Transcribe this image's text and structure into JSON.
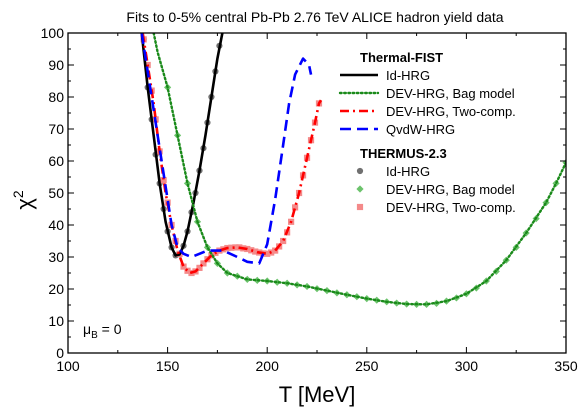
{
  "chart_data": {
    "type": "line",
    "title": "Fits to 0-5% central Pb-Pb 2.76 TeV ALICE hadron yield data",
    "xlabel": "T [MeV]",
    "ylabel": "χ",
    "ylabel_sup": "2",
    "xlim": [
      100,
      350
    ],
    "ylim": [
      0,
      100
    ],
    "xticks": [
      "100",
      "150",
      "200",
      "250",
      "300",
      "350"
    ],
    "yticks": [
      "0",
      "10",
      "20",
      "30",
      "40",
      "50",
      "60",
      "70",
      "80",
      "90",
      "100"
    ],
    "annotation": {
      "main": "μ",
      "sub": "B",
      "rest": " = 0"
    },
    "legend_position": "top-right",
    "legend_groups": [
      {
        "header": "Thermal-FIST",
        "series": [
          "fist_id",
          "fist_bag",
          "fist_two",
          "fist_qvdw"
        ]
      },
      {
        "header": "THERMUS-2.3",
        "series": [
          "thermus_id",
          "thermus_bag",
          "thermus_two"
        ]
      }
    ],
    "series": [
      {
        "id": "fist_id",
        "name": "Id-HRG",
        "style": "line",
        "dash": "solid",
        "color": "#000000",
        "points": [
          [
            137,
            100
          ],
          [
            140,
            83
          ],
          [
            143,
            68
          ],
          [
            146,
            53
          ],
          [
            149,
            41
          ],
          [
            152,
            33
          ],
          [
            154,
            30.5
          ],
          [
            156,
            30.8
          ],
          [
            158,
            33.5
          ],
          [
            160,
            38
          ],
          [
            163,
            47
          ],
          [
            166,
            57
          ],
          [
            169,
            68
          ],
          [
            172,
            80
          ],
          [
            175,
            92
          ],
          [
            177.5,
            100
          ]
        ]
      },
      {
        "id": "fist_bag",
        "name": "DEV-HRG, Bag model",
        "style": "line",
        "dash": "dotted",
        "color": "#1a8a1a",
        "points": [
          [
            143,
            100
          ],
          [
            145,
            94
          ],
          [
            150,
            83
          ],
          [
            155,
            68
          ],
          [
            160,
            53
          ],
          [
            165,
            41
          ],
          [
            170,
            33
          ],
          [
            175,
            28
          ],
          [
            180,
            25
          ],
          [
            190,
            23
          ],
          [
            200,
            22.5
          ],
          [
            210,
            21.8
          ],
          [
            220,
            20.8
          ],
          [
            230,
            19.5
          ],
          [
            240,
            18.2
          ],
          [
            250,
            17
          ],
          [
            260,
            16
          ],
          [
            270,
            15.3
          ],
          [
            280,
            15.2
          ],
          [
            290,
            16.2
          ],
          [
            300,
            18.5
          ],
          [
            310,
            22.5
          ],
          [
            320,
            29
          ],
          [
            330,
            37.5
          ],
          [
            340,
            47
          ],
          [
            345,
            53
          ],
          [
            350,
            59.5
          ]
        ]
      },
      {
        "id": "fist_two",
        "name": "DEV-HRG, Two-comp.",
        "style": "line",
        "dash": "dashdot",
        "color": "#ff0000",
        "points": [
          [
            137.5,
            100
          ],
          [
            140,
            90
          ],
          [
            143,
            78
          ],
          [
            146,
            63
          ],
          [
            149,
            50
          ],
          [
            152,
            40
          ],
          [
            155,
            32
          ],
          [
            158,
            27
          ],
          [
            161,
            25
          ],
          [
            164,
            25.5
          ],
          [
            168,
            28
          ],
          [
            172,
            30.5
          ],
          [
            176,
            32
          ],
          [
            180,
            32.8
          ],
          [
            185,
            33
          ],
          [
            190,
            32.5
          ],
          [
            195,
            31.5
          ],
          [
            200,
            31
          ],
          [
            204,
            32
          ],
          [
            208,
            35
          ],
          [
            212,
            41
          ],
          [
            216,
            50
          ],
          [
            220,
            61
          ],
          [
            224,
            72
          ],
          [
            226,
            78
          ],
          [
            227,
            79
          ]
        ]
      },
      {
        "id": "fist_qvdw",
        "name": "QvdW-HRG",
        "style": "line",
        "dash": "dashed",
        "color": "#0000ff",
        "points": [
          [
            137,
            100
          ],
          [
            142,
            80
          ],
          [
            147,
            60
          ],
          [
            150,
            48
          ],
          [
            152,
            40
          ],
          [
            155,
            33
          ],
          [
            158,
            31
          ],
          [
            162,
            30
          ],
          [
            170,
            32
          ],
          [
            178,
            32
          ],
          [
            185,
            30
          ],
          [
            190,
            28.5
          ],
          [
            196,
            28
          ],
          [
            200,
            34
          ],
          [
            204,
            48
          ],
          [
            208,
            65
          ],
          [
            211,
            78
          ],
          [
            214,
            87
          ],
          [
            218,
            92
          ],
          [
            221,
            90
          ],
          [
            222,
            87
          ]
        ]
      },
      {
        "id": "thermus_id",
        "name": "Id-HRG",
        "style": "marker",
        "marker": "circle",
        "color": "#707070",
        "points": [
          [
            138,
            98
          ],
          [
            140,
            83
          ],
          [
            142,
            73
          ],
          [
            144,
            62
          ],
          [
            146,
            53
          ],
          [
            148,
            45
          ],
          [
            150,
            38
          ],
          [
            152,
            33
          ],
          [
            154,
            30.5
          ],
          [
            156,
            30.8
          ],
          [
            158,
            33.5
          ],
          [
            160,
            38
          ],
          [
            162,
            44
          ],
          [
            164,
            50
          ],
          [
            166,
            57
          ],
          [
            168,
            64
          ],
          [
            170,
            72
          ],
          [
            172,
            80
          ],
          [
            174,
            88
          ],
          [
            176,
            96
          ]
        ]
      },
      {
        "id": "thermus_bag",
        "name": "DEV-HRG, Bag model",
        "style": "marker",
        "marker": "diamond",
        "color": "#6cc36c",
        "points": [
          [
            150,
            83
          ],
          [
            155,
            68
          ],
          [
            160,
            53
          ],
          [
            165,
            41
          ],
          [
            170,
            33
          ],
          [
            175,
            28
          ],
          [
            180,
            25
          ],
          [
            185,
            24
          ],
          [
            190,
            23
          ],
          [
            195,
            22.7
          ],
          [
            200,
            22.5
          ],
          [
            205,
            22.1
          ],
          [
            210,
            21.8
          ],
          [
            215,
            21.3
          ],
          [
            220,
            20.8
          ],
          [
            225,
            20.1
          ],
          [
            230,
            19.5
          ],
          [
            235,
            18.8
          ],
          [
            240,
            18.2
          ],
          [
            245,
            17.6
          ],
          [
            250,
            17
          ],
          [
            255,
            16.5
          ],
          [
            260,
            16
          ],
          [
            265,
            15.6
          ],
          [
            270,
            15.3
          ],
          [
            275,
            15.2
          ],
          [
            280,
            15.2
          ],
          [
            285,
            15.5
          ],
          [
            290,
            16.2
          ],
          [
            295,
            17.2
          ],
          [
            300,
            18.5
          ],
          [
            305,
            20.3
          ],
          [
            310,
            22.5
          ],
          [
            315,
            25.5
          ],
          [
            320,
            29
          ],
          [
            325,
            33
          ],
          [
            330,
            37.5
          ],
          [
            335,
            42
          ],
          [
            340,
            47
          ],
          [
            345,
            53
          ],
          [
            350,
            59.5
          ]
        ]
      },
      {
        "id": "thermus_two",
        "name": "DEV-HRG, Two-comp.",
        "style": "marker",
        "marker": "square",
        "color": "#f48a8a",
        "points": [
          [
            138,
            98
          ],
          [
            140,
            90
          ],
          [
            142,
            82
          ],
          [
            144,
            73
          ],
          [
            146,
            63
          ],
          [
            148,
            54
          ],
          [
            150,
            47
          ],
          [
            152,
            40
          ],
          [
            154,
            35
          ],
          [
            156,
            31
          ],
          [
            158,
            27
          ],
          [
            160,
            25.7
          ],
          [
            162,
            25
          ],
          [
            164,
            25.5
          ],
          [
            166,
            26.6
          ],
          [
            168,
            28
          ],
          [
            170,
            29.3
          ],
          [
            172,
            30.5
          ],
          [
            174,
            31.3
          ],
          [
            176,
            32
          ],
          [
            178,
            32.4
          ],
          [
            180,
            32.8
          ],
          [
            182,
            32.9
          ],
          [
            184,
            33
          ],
          [
            186,
            33
          ],
          [
            188,
            32.7
          ],
          [
            190,
            32.5
          ],
          [
            192,
            32.1
          ],
          [
            194,
            31.7
          ],
          [
            196,
            31.4
          ],
          [
            198,
            31.1
          ],
          [
            200,
            31
          ],
          [
            202,
            31.4
          ],
          [
            204,
            32
          ],
          [
            206,
            33.3
          ],
          [
            208,
            35
          ],
          [
            210,
            37.7
          ],
          [
            212,
            41
          ],
          [
            214,
            45.5
          ],
          [
            216,
            50
          ],
          [
            218,
            55.5
          ],
          [
            220,
            61
          ],
          [
            222,
            66.5
          ],
          [
            224,
            72
          ],
          [
            226,
            78
          ]
        ]
      }
    ]
  }
}
